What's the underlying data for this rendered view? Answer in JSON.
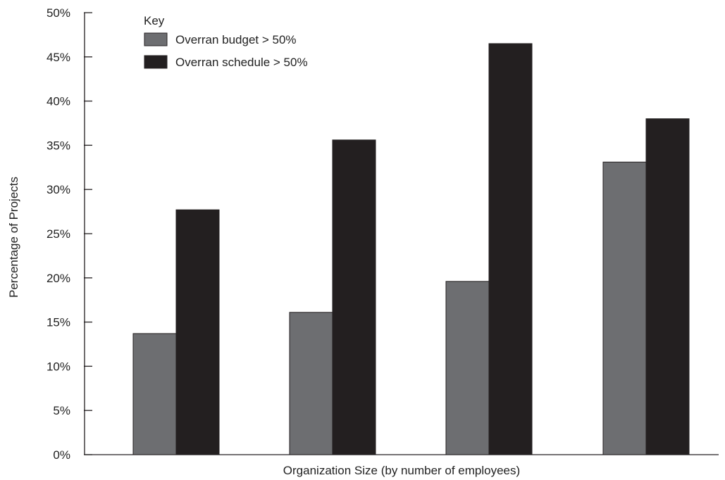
{
  "chart_data": {
    "type": "bar",
    "title": "",
    "xlabel": "Organization Size (by number of employees)",
    "ylabel": "Percentage of Projects",
    "ylim": [
      0,
      50
    ],
    "yticks": [
      "0%",
      "5%",
      "10%",
      "15%",
      "20%",
      "25%",
      "30%",
      "35%",
      "40%",
      "45%",
      "50%"
    ],
    "categories": [
      "",
      "",
      "",
      ""
    ],
    "legend": {
      "title": "Key",
      "position": "top-left"
    },
    "series": [
      {
        "name": "Overran budget > 50%",
        "color": "#6d6e71",
        "values": [
          13.7,
          16.1,
          19.6,
          33.1
        ]
      },
      {
        "name": "Overran schedule > 50%",
        "color": "#231f20",
        "values": [
          27.7,
          35.6,
          46.5,
          38.0
        ]
      }
    ],
    "grid": false
  }
}
